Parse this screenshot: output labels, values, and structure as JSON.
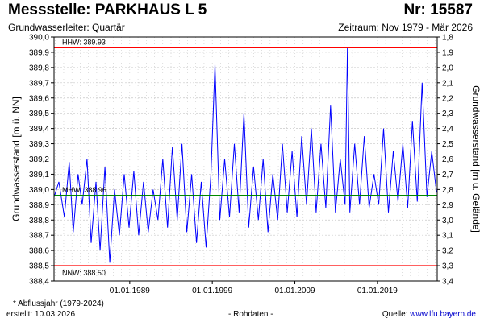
{
  "header": {
    "title": "Messstelle: PARKHAUS L 5",
    "number": "Nr: 15587",
    "aquifer": "Grundwasserleiter: Quartär",
    "period": "Zeitraum: Nov 1979 - Mär 2026"
  },
  "footer": {
    "footnote": "* Abflussjahr (1979-2024)",
    "created": "erstellt:  10.03.2026",
    "raw": "- Rohdaten -",
    "source_label": "Quelle: ",
    "source_link": "www.lfu.bayern.de"
  },
  "colors": {
    "series": "#0000ff",
    "hhw": "#ff0000",
    "nnw": "#ff0000",
    "mhw": "#008800",
    "grid": "#c8c8c8"
  },
  "chart_data": {
    "type": "line",
    "ylabel": "Grundwasserstand [m ü. NN]",
    "y2label": "Grundwasserstand [m u. Gelände]",
    "xlim": [
      "1979-11-01",
      "2026-03-31"
    ],
    "ylim": [
      388.4,
      390.0
    ],
    "y2lim": [
      3.4,
      1.8
    ],
    "y_ticks": [
      "388,4",
      "388,5",
      "388,6",
      "388,7",
      "388,8",
      "388,9",
      "389,0",
      "389,1",
      "389,2",
      "389,3",
      "389,4",
      "389,5",
      "389,6",
      "389,7",
      "389,8",
      "389,9",
      "390,0"
    ],
    "y2_ticks": [
      "3,4",
      "3,3",
      "3,2",
      "3,1",
      "3,0",
      "2,9",
      "2,8",
      "2,7",
      "2,6",
      "2,5",
      "2,4",
      "2,3",
      "2,2",
      "2,1",
      "2,0",
      "1,9",
      "1,8"
    ],
    "x_ticks": [
      {
        "date": "1989-01-01",
        "label": "01.01.1989"
      },
      {
        "date": "1999-01-01",
        "label": "01.01.1999"
      },
      {
        "date": "2009-01-01",
        "label": "01.01.2009"
      },
      {
        "date": "2019-01-01",
        "label": "01.01.2019"
      }
    ],
    "grid": true,
    "reference_lines": [
      {
        "key": "hhw",
        "label": "HHW: 389.93",
        "value": 389.93
      },
      {
        "key": "mhw",
        "label": "MHW: 388.96",
        "value": 388.96
      },
      {
        "key": "nnw",
        "label": "NNW: 388.50",
        "value": 388.5
      }
    ],
    "series": [
      {
        "values": [
          [
            "1979-11-01",
            388.95
          ],
          [
            "1980-06-01",
            389.05
          ],
          [
            "1981-02-01",
            388.82
          ],
          [
            "1981-09-01",
            389.18
          ],
          [
            "1982-03-01",
            388.72
          ],
          [
            "1982-10-01",
            389.1
          ],
          [
            "1983-04-01",
            388.9
          ],
          [
            "1983-11-01",
            389.2
          ],
          [
            "1984-05-01",
            388.65
          ],
          [
            "1984-12-01",
            389.05
          ],
          [
            "1985-06-01",
            388.6
          ],
          [
            "1986-01-01",
            389.15
          ],
          [
            "1986-08-01",
            388.52
          ],
          [
            "1987-03-01",
            389.0
          ],
          [
            "1987-10-01",
            388.7
          ],
          [
            "1988-05-01",
            389.1
          ],
          [
            "1988-12-01",
            388.75
          ],
          [
            "1989-07-01",
            389.12
          ],
          [
            "1990-02-01",
            388.7
          ],
          [
            "1990-09-01",
            389.05
          ],
          [
            "1991-04-01",
            388.72
          ],
          [
            "1991-11-01",
            389.0
          ],
          [
            "1992-06-01",
            388.8
          ],
          [
            "1993-01-01",
            389.2
          ],
          [
            "1993-08-01",
            388.75
          ],
          [
            "1994-03-01",
            389.28
          ],
          [
            "1994-10-01",
            388.8
          ],
          [
            "1995-05-01",
            389.3
          ],
          [
            "1995-12-01",
            388.72
          ],
          [
            "1996-07-01",
            389.1
          ],
          [
            "1997-02-01",
            388.65
          ],
          [
            "1997-09-01",
            389.05
          ],
          [
            "1998-04-01",
            388.62
          ],
          [
            "1998-11-01",
            389.1
          ],
          [
            "1999-05-01",
            389.82
          ],
          [
            "1999-12-01",
            388.8
          ],
          [
            "2000-07-01",
            389.2
          ],
          [
            "2001-02-01",
            388.82
          ],
          [
            "2001-09-01",
            389.3
          ],
          [
            "2002-04-01",
            388.85
          ],
          [
            "2002-11-01",
            389.5
          ],
          [
            "2003-06-01",
            388.75
          ],
          [
            "2004-01-01",
            389.15
          ],
          [
            "2004-08-01",
            388.8
          ],
          [
            "2005-03-01",
            389.2
          ],
          [
            "2005-10-01",
            388.72
          ],
          [
            "2006-05-01",
            389.1
          ],
          [
            "2006-12-01",
            388.8
          ],
          [
            "2007-07-01",
            389.3
          ],
          [
            "2008-02-01",
            388.85
          ],
          [
            "2008-09-01",
            389.25
          ],
          [
            "2009-04-01",
            388.82
          ],
          [
            "2009-11-01",
            389.35
          ],
          [
            "2010-06-01",
            388.9
          ],
          [
            "2011-01-01",
            389.4
          ],
          [
            "2011-08-01",
            388.85
          ],
          [
            "2012-03-01",
            389.3
          ],
          [
            "2012-10-01",
            388.88
          ],
          [
            "2013-05-01",
            389.55
          ],
          [
            "2013-12-01",
            388.85
          ],
          [
            "2014-07-01",
            389.2
          ],
          [
            "2015-02-01",
            388.9
          ],
          [
            "2015-05-15",
            389.93
          ],
          [
            "2015-09-01",
            388.85
          ],
          [
            "2016-04-01",
            389.3
          ],
          [
            "2016-11-01",
            388.9
          ],
          [
            "2017-06-01",
            389.35
          ],
          [
            "2018-01-01",
            388.88
          ],
          [
            "2018-08-01",
            389.1
          ],
          [
            "2019-03-01",
            388.9
          ],
          [
            "2019-10-01",
            389.4
          ],
          [
            "2020-05-01",
            388.85
          ],
          [
            "2020-12-01",
            389.25
          ],
          [
            "2021-07-01",
            388.92
          ],
          [
            "2022-02-01",
            389.3
          ],
          [
            "2022-09-01",
            388.88
          ],
          [
            "2023-04-01",
            389.45
          ],
          [
            "2023-11-01",
            388.92
          ],
          [
            "2024-06-01",
            389.7
          ],
          [
            "2025-01-01",
            388.95
          ],
          [
            "2025-08-01",
            389.25
          ],
          [
            "2026-03-01",
            388.98
          ]
        ]
      }
    ]
  }
}
